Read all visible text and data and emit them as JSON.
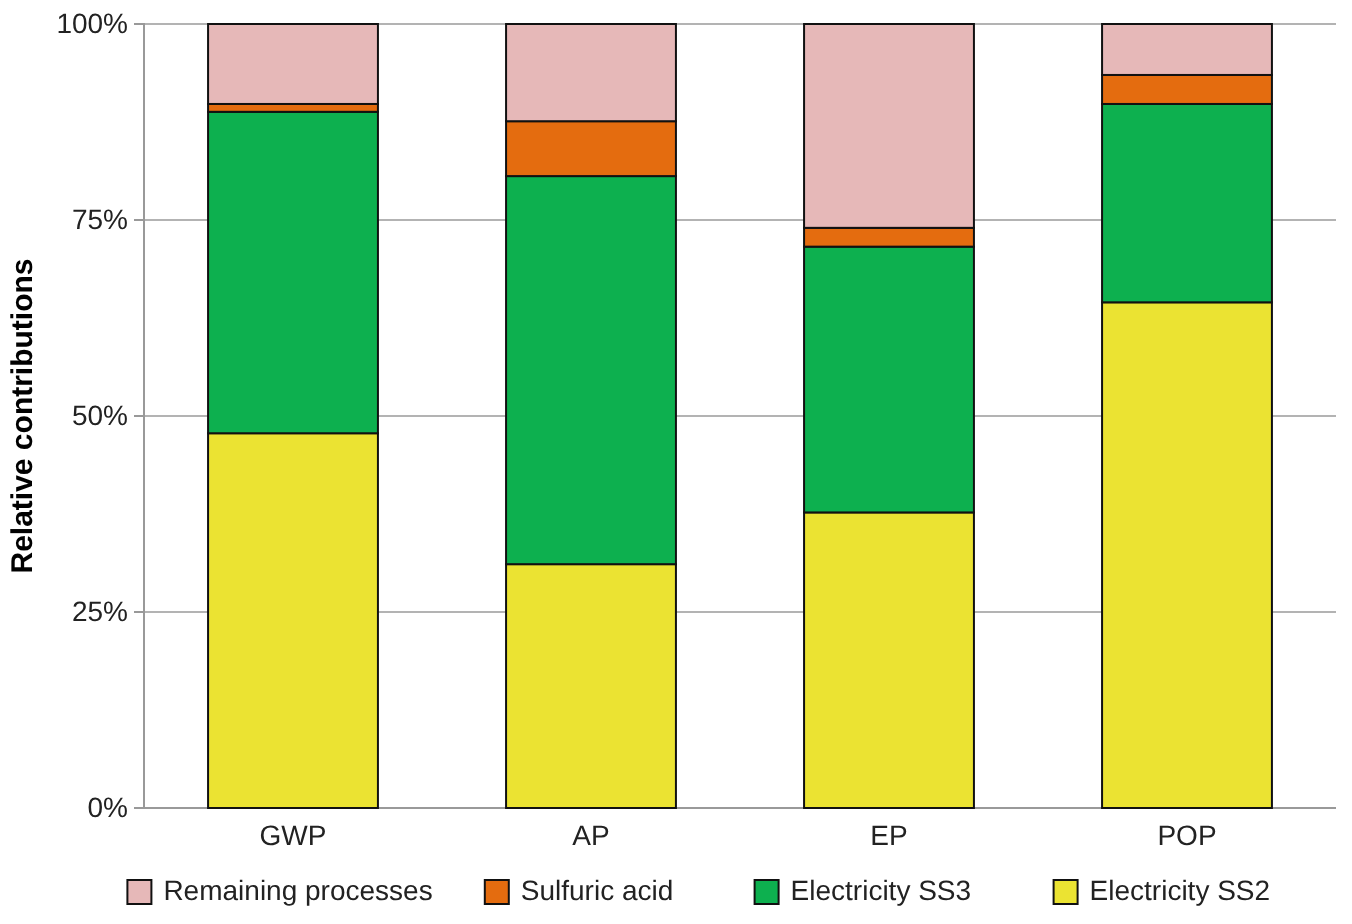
{
  "chart_data": {
    "type": "bar",
    "stacked": true,
    "ylabel": "Relative contributions",
    "categories": [
      "GWP",
      "AP",
      "EP",
      "POP"
    ],
    "series": [
      {
        "name": "Electricity SS2",
        "color": "#ebe332",
        "values": [
          47.8,
          31.1,
          37.7,
          64.5
        ]
      },
      {
        "name": "Electricity SS3",
        "color": "#0db04f",
        "values": [
          41.0,
          49.5,
          33.9,
          25.3
        ]
      },
      {
        "name": "Sulfuric acid",
        "color": "#e46c0f",
        "values": [
          1.0,
          7.0,
          2.4,
          3.7
        ]
      },
      {
        "name": "Remaining processes",
        "color": "#e6b8b8",
        "values": [
          10.2,
          12.4,
          26.0,
          6.5
        ]
      }
    ],
    "ylim": [
      0,
      100
    ],
    "yticks": [
      {
        "value": 0,
        "label": "0%"
      },
      {
        "value": 25,
        "label": "25%"
      },
      {
        "value": 50,
        "label": "50%"
      },
      {
        "value": 75,
        "label": "75%"
      },
      {
        "value": 100,
        "label": "100%"
      }
    ],
    "grid": "y",
    "legend": "bottom"
  }
}
